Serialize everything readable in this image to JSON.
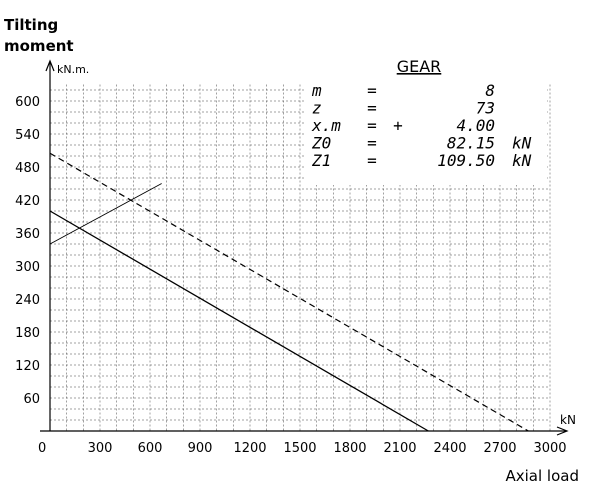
{
  "chart_data": {
    "type": "line",
    "ylabel_lines": [
      "Tilting",
      "moment"
    ],
    "yunit": "kN.m.",
    "xlabel": "Axial load",
    "xunit": "kN",
    "xlim": [
      0,
      3000
    ],
    "ylim": [
      0,
      630
    ],
    "xticks": [
      0,
      300,
      600,
      900,
      1200,
      1500,
      1800,
      2100,
      2400,
      2700,
      3000
    ],
    "yticks": [
      60,
      120,
      180,
      240,
      300,
      360,
      420,
      480,
      540,
      600
    ],
    "grid": true,
    "series": [
      {
        "style": "solid",
        "x": [
          0,
          2270
        ],
        "y": [
          400,
          0
        ]
      },
      {
        "style": "dashed",
        "x": [
          0,
          2870
        ],
        "y": [
          505,
          0
        ]
      },
      {
        "style": "thin",
        "x": [
          0,
          670
        ],
        "y": [
          340,
          450
        ]
      }
    ],
    "annotation": {
      "title": "GEAR",
      "rows": [
        {
          "name": "m",
          "op": "=",
          "sign": "",
          "value": "8",
          "unit": ""
        },
        {
          "name": "z",
          "op": "=",
          "sign": "",
          "value": "73",
          "unit": ""
        },
        {
          "name": "x.m",
          "op": "=",
          "sign": "+",
          "value": "4.00",
          "unit": ""
        },
        {
          "name": "Z0",
          "op": "=",
          "sign": "",
          "value": "82.15",
          "unit": "kN"
        },
        {
          "name": "Z1",
          "op": "=",
          "sign": "",
          "value": "109.50",
          "unit": "kN"
        }
      ]
    }
  }
}
